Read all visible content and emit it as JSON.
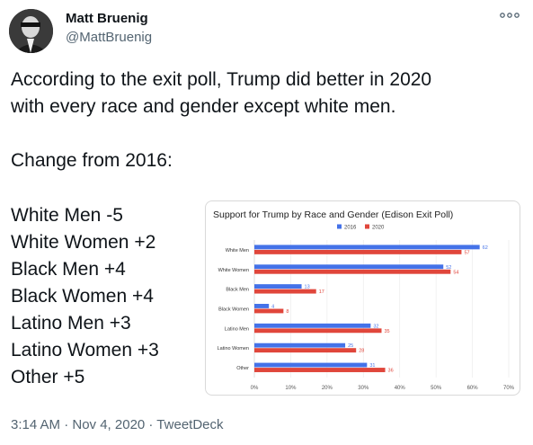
{
  "author": {
    "name": "Matt Bruenig",
    "handle": "@MattBruenig",
    "avatar_icon": "profile-photo-icon"
  },
  "more_icon": "more-options-icon",
  "tweet": {
    "lines": [
      "According to the exit poll, Trump did better in 2020",
      "with every race and gender except white men.",
      "",
      "Change from 2016:"
    ],
    "changes": [
      "White Men -5",
      "White Women +2",
      "Black Men +4",
      "Black Women +4",
      "Latino Men +3",
      "Latino Women +3",
      "Other +5"
    ]
  },
  "footer": "3:14 AM · Nov 4, 2020 · TweetDeck",
  "colors": {
    "series_2016": "#4472e8",
    "series_2020": "#e0463b"
  },
  "chart_data": {
    "type": "bar",
    "orientation": "horizontal",
    "title": "Support for Trump by Race and Gender (Edison Exit Poll)",
    "categories": [
      "White Men",
      "White Women",
      "Black Men",
      "Black Women",
      "Latino Men",
      "Latino Women",
      "Other"
    ],
    "series": [
      {
        "name": "2016",
        "values": [
          62,
          52,
          13,
          4,
          32,
          25,
          31
        ]
      },
      {
        "name": "2020",
        "values": [
          57,
          54,
          17,
          8,
          35,
          28,
          36
        ]
      }
    ],
    "x_ticks": [
      "0%",
      "10%",
      "20%",
      "30%",
      "40%",
      "50%",
      "60%",
      "70%"
    ],
    "xlim": [
      0,
      70
    ],
    "grid": true,
    "legend": "top"
  }
}
